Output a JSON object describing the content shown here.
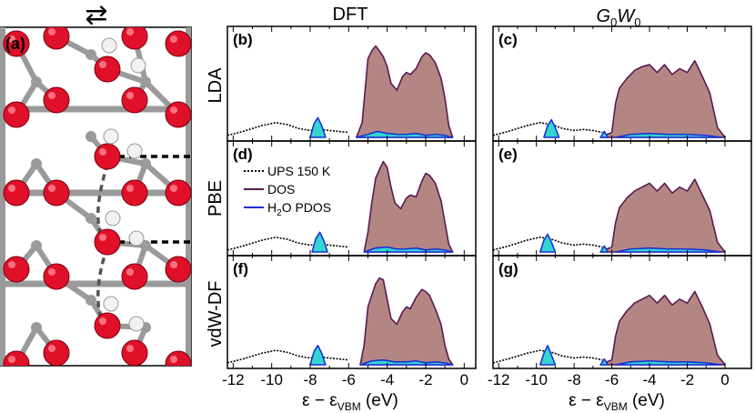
{
  "figure": {
    "col_titles": [
      "DFT",
      "G0W0"
    ],
    "col_title_gw": {
      "G": "G",
      "sub1": "0",
      "W": "W",
      "sub2": "0"
    },
    "row_labels": [
      "LDA",
      "PBE",
      "vdW-DF"
    ],
    "structure_label": "(a)",
    "structure_arrows": "⇄",
    "xlabel": {
      "base": "ε − ε",
      "sub": "VBM",
      "unit": " (eV)"
    },
    "xticks": [
      "-12",
      "-10",
      "-8",
      "-6",
      "-4",
      "-2",
      "0"
    ],
    "legend": {
      "ups": "UPS 150 K",
      "dos": "DOS",
      "pdos_prefix": "H",
      "pdos_sub": "2",
      "pdos_suffix": "O PDOS"
    },
    "colors": {
      "dos_fill": "#b38683",
      "dos_line": "#5a1a52",
      "pdos_fill": "#33d6cf",
      "pdos_line": "#1c2fd8",
      "ups_line": "#000000",
      "oxygen": "#e01028",
      "titanium": "#9a9a9a",
      "hydrogen": "#f2f2f2"
    }
  },
  "chart_data": [
    {
      "panel": "(b)",
      "method": "DFT",
      "functional": "LDA",
      "type": "area",
      "xlim": [
        -12.3,
        0.6
      ],
      "ups": {
        "x": [
          -12.3,
          -11.5,
          -10.5,
          -9.8,
          -9.2,
          -8.6,
          -8.0,
          -7.5,
          -7.0,
          -6.5,
          -6.0
        ],
        "y": [
          0.02,
          0.06,
          0.12,
          0.15,
          0.13,
          0.09,
          0.07,
          0.08,
          0.07,
          0.06,
          0.05
        ]
      },
      "dos": {
        "x": [
          -5.6,
          -5.3,
          -5.0,
          -4.8,
          -4.6,
          -4.4,
          -4.2,
          -4.0,
          -3.8,
          -3.5,
          -3.2,
          -3.0,
          -2.8,
          -2.5,
          -2.2,
          -2.0,
          -1.8,
          -1.5,
          -1.2,
          -1.0,
          -0.8,
          -0.6
        ],
        "y": [
          0.0,
          0.15,
          0.8,
          0.88,
          0.93,
          0.88,
          0.82,
          0.72,
          0.55,
          0.48,
          0.62,
          0.66,
          0.64,
          0.7,
          0.82,
          0.86,
          0.84,
          0.76,
          0.6,
          0.4,
          0.12,
          0.0
        ]
      },
      "pdos": [
        {
          "x": [
            -8.0,
            -7.8,
            -7.6,
            -7.4,
            -7.2
          ],
          "y": [
            0.0,
            0.14,
            0.2,
            0.12,
            0.0
          ]
        },
        {
          "x": [
            -5.6,
            -5.0,
            -4.5,
            -4.0,
            -3.5,
            -3.0,
            -2.5,
            -2.0,
            -1.5,
            -1.0,
            -0.6
          ],
          "y": [
            0.0,
            0.03,
            0.06,
            0.04,
            0.03,
            0.03,
            0.04,
            0.02,
            0.03,
            0.02,
            0.0
          ]
        }
      ]
    },
    {
      "panel": "(c)",
      "method": "G0W0",
      "functional": "LDA",
      "type": "area",
      "xlim": [
        -12.3,
        1.4
      ],
      "ups": {
        "x": [
          -12.3,
          -11.5,
          -10.5,
          -9.8,
          -9.2,
          -8.6,
          -8.0,
          -7.5,
          -7.0,
          -6.5
        ],
        "y": [
          0.02,
          0.06,
          0.12,
          0.15,
          0.13,
          0.09,
          0.07,
          0.08,
          0.07,
          0.05
        ]
      },
      "dos": {
        "x": [
          -6.6,
          -6.4,
          -6.0,
          -5.8,
          -5.6,
          -5.2,
          -4.8,
          -4.4,
          -4.0,
          -3.6,
          -3.2,
          -2.8,
          -2.4,
          -2.0,
          -1.6,
          -1.2,
          -0.8,
          -0.4,
          0.0
        ],
        "y": [
          0.0,
          0.02,
          0.05,
          0.35,
          0.5,
          0.6,
          0.68,
          0.72,
          0.74,
          0.66,
          0.74,
          0.64,
          0.7,
          0.66,
          0.78,
          0.62,
          0.45,
          0.1,
          0.0
        ]
      },
      "pdos": [
        {
          "x": [
            -9.6,
            -9.4,
            -9.2,
            -9.0,
            -8.8
          ],
          "y": [
            0.0,
            0.12,
            0.18,
            0.1,
            0.0
          ]
        },
        {
          "x": [
            -6.6,
            -6.4,
            -6.2
          ],
          "y": [
            0.0,
            0.06,
            0.0
          ]
        },
        {
          "x": [
            -5.8,
            -5.0,
            -4.0,
            -3.0,
            -2.0,
            -1.0,
            -0.2
          ],
          "y": [
            0.0,
            0.03,
            0.04,
            0.03,
            0.03,
            0.02,
            0.0
          ]
        }
      ]
    },
    {
      "panel": "(d)",
      "method": "DFT",
      "functional": "PBE",
      "type": "area",
      "xlim": [
        -12.3,
        0.6
      ],
      "ups": {
        "x": [
          -12.3,
          -11.5,
          -10.5,
          -9.8,
          -9.2,
          -8.6,
          -8.0,
          -7.5,
          -7.0,
          -6.5,
          -6.0
        ],
        "y": [
          0.02,
          0.06,
          0.12,
          0.15,
          0.13,
          0.09,
          0.07,
          0.08,
          0.07,
          0.06,
          0.05
        ]
      },
      "dos": {
        "x": [
          -5.2,
          -5.0,
          -4.8,
          -4.6,
          -4.4,
          -4.2,
          -4.0,
          -3.8,
          -3.6,
          -3.3,
          -3.0,
          -2.8,
          -2.5,
          -2.2,
          -2.0,
          -1.8,
          -1.5,
          -1.2,
          -1.0,
          -0.8,
          -0.6
        ],
        "y": [
          0.0,
          0.2,
          0.5,
          0.75,
          0.84,
          0.92,
          0.86,
          0.66,
          0.5,
          0.44,
          0.55,
          0.58,
          0.56,
          0.72,
          0.8,
          0.78,
          0.7,
          0.52,
          0.3,
          0.08,
          0.0
        ]
      },
      "pdos": [
        {
          "x": [
            -7.9,
            -7.7,
            -7.5,
            -7.3,
            -7.1
          ],
          "y": [
            0.0,
            0.14,
            0.2,
            0.12,
            0.0
          ]
        },
        {
          "x": [
            -5.2,
            -4.6,
            -4.0,
            -3.5,
            -3.0,
            -2.5,
            -2.0,
            -1.5,
            -1.0,
            -0.6
          ],
          "y": [
            0.0,
            0.04,
            0.05,
            0.03,
            0.03,
            0.04,
            0.02,
            0.03,
            0.02,
            0.0
          ]
        }
      ]
    },
    {
      "panel": "(e)",
      "method": "G0W0",
      "functional": "PBE",
      "type": "area",
      "xlim": [
        -12.3,
        1.4
      ],
      "ups": {
        "x": [
          -12.3,
          -11.5,
          -10.5,
          -9.8,
          -9.2,
          -8.6,
          -8.0,
          -7.5,
          -7.0,
          -6.5
        ],
        "y": [
          0.02,
          0.06,
          0.12,
          0.15,
          0.13,
          0.09,
          0.07,
          0.08,
          0.07,
          0.05
        ]
      },
      "dos": {
        "x": [
          -6.6,
          -6.4,
          -6.0,
          -5.8,
          -5.6,
          -5.2,
          -4.8,
          -4.4,
          -4.0,
          -3.6,
          -3.2,
          -2.8,
          -2.4,
          -2.0,
          -1.6,
          -1.2,
          -0.8,
          -0.4,
          0.0
        ],
        "y": [
          0.0,
          0.02,
          0.05,
          0.3,
          0.45,
          0.55,
          0.62,
          0.66,
          0.7,
          0.62,
          0.7,
          0.6,
          0.66,
          0.62,
          0.74,
          0.58,
          0.42,
          0.1,
          0.0
        ]
      },
      "pdos": [
        {
          "x": [
            -9.8,
            -9.6,
            -9.4,
            -9.2,
            -9.0
          ],
          "y": [
            0.0,
            0.12,
            0.18,
            0.1,
            0.0
          ]
        },
        {
          "x": [
            -6.6,
            -6.4,
            -6.2
          ],
          "y": [
            0.0,
            0.06,
            0.0
          ]
        },
        {
          "x": [
            -5.8,
            -5.0,
            -4.0,
            -3.0,
            -2.0,
            -1.0,
            -0.2
          ],
          "y": [
            0.0,
            0.03,
            0.04,
            0.03,
            0.03,
            0.02,
            0.0
          ]
        }
      ]
    },
    {
      "panel": "(f)",
      "method": "DFT",
      "functional": "vdW-DF",
      "type": "area",
      "xlim": [
        -12.3,
        0.6
      ],
      "ups": {
        "x": [
          -12.3,
          -11.5,
          -10.5,
          -9.8,
          -9.2,
          -8.6,
          -8.0,
          -7.5,
          -7.0,
          -6.5,
          -6.0
        ],
        "y": [
          0.02,
          0.06,
          0.12,
          0.15,
          0.13,
          0.09,
          0.07,
          0.08,
          0.07,
          0.06,
          0.05
        ]
      },
      "dos": {
        "x": [
          -5.4,
          -5.2,
          -5.0,
          -4.8,
          -4.6,
          -4.4,
          -4.2,
          -4.0,
          -3.8,
          -3.5,
          -3.2,
          -3.0,
          -2.8,
          -2.5,
          -2.2,
          -2.0,
          -1.8,
          -1.5,
          -1.2,
          -1.0,
          -0.8,
          -0.6
        ],
        "y": [
          0.0,
          0.2,
          0.6,
          0.72,
          0.84,
          0.9,
          0.88,
          0.68,
          0.48,
          0.42,
          0.55,
          0.6,
          0.58,
          0.7,
          0.78,
          0.76,
          0.72,
          0.58,
          0.42,
          0.2,
          0.06,
          0.0
        ]
      },
      "pdos": [
        {
          "x": [
            -8.0,
            -7.8,
            -7.6,
            -7.4,
            -7.2
          ],
          "y": [
            0.0,
            0.14,
            0.2,
            0.12,
            0.0
          ]
        },
        {
          "x": [
            -5.4,
            -4.8,
            -4.2,
            -3.6,
            -3.0,
            -2.5,
            -2.0,
            -1.5,
            -1.0,
            -0.6
          ],
          "y": [
            0.0,
            0.04,
            0.05,
            0.03,
            0.03,
            0.04,
            0.02,
            0.03,
            0.02,
            0.0
          ]
        }
      ]
    },
    {
      "panel": "(g)",
      "method": "G0W0",
      "functional": "vdW-DF",
      "type": "area",
      "xlim": [
        -12.3,
        1.4
      ],
      "ups": {
        "x": [
          -12.3,
          -11.5,
          -10.5,
          -9.8,
          -9.2,
          -8.6,
          -8.0,
          -7.5,
          -7.0,
          -6.5
        ],
        "y": [
          0.02,
          0.06,
          0.12,
          0.15,
          0.13,
          0.09,
          0.07,
          0.08,
          0.07,
          0.05
        ]
      },
      "dos": {
        "x": [
          -6.6,
          -6.4,
          -6.0,
          -5.8,
          -5.6,
          -5.2,
          -4.8,
          -4.4,
          -4.0,
          -3.6,
          -3.2,
          -2.8,
          -2.4,
          -2.0,
          -1.6,
          -1.2,
          -0.8,
          -0.4,
          0.0
        ],
        "y": [
          0.0,
          0.02,
          0.05,
          0.3,
          0.45,
          0.56,
          0.64,
          0.68,
          0.72,
          0.64,
          0.72,
          0.62,
          0.68,
          0.64,
          0.76,
          0.6,
          0.42,
          0.1,
          0.0
        ]
      },
      "pdos": [
        {
          "x": [
            -9.8,
            -9.6,
            -9.4,
            -9.2,
            -9.0
          ],
          "y": [
            0.0,
            0.12,
            0.2,
            0.1,
            0.0
          ]
        },
        {
          "x": [
            -6.6,
            -6.4,
            -6.2
          ],
          "y": [
            0.0,
            0.06,
            0.0
          ]
        },
        {
          "x": [
            -5.8,
            -5.0,
            -4.0,
            -3.0,
            -2.0,
            -1.0,
            -0.2
          ],
          "y": [
            0.0,
            0.03,
            0.04,
            0.03,
            0.03,
            0.02,
            0.0
          ]
        }
      ]
    }
  ]
}
